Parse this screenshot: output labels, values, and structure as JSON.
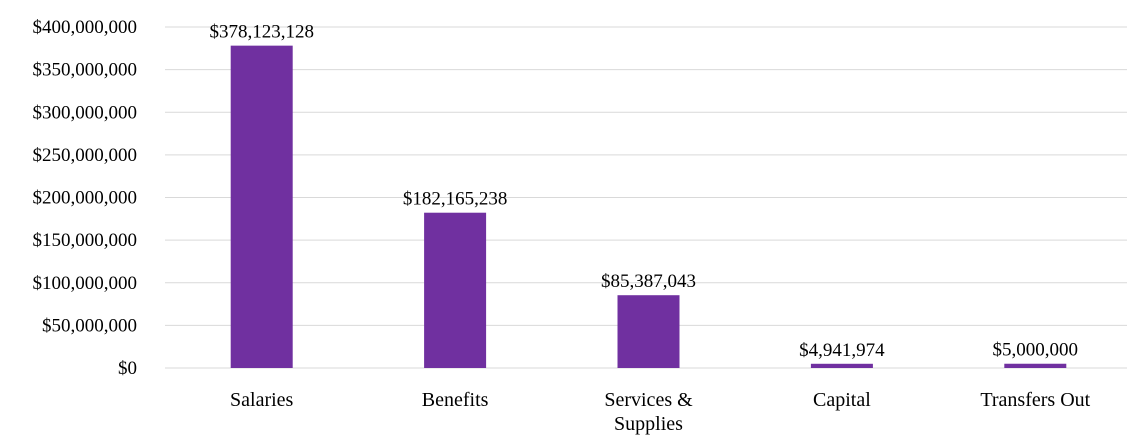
{
  "chart_data": {
    "type": "bar",
    "categories": [
      [
        "Salaries"
      ],
      [
        "Benefits"
      ],
      [
        "Services &",
        "Supplies"
      ],
      [
        "Capital"
      ],
      [
        "Transfers Out"
      ]
    ],
    "values": [
      378123128,
      182165238,
      85387043,
      4941974,
      5000000
    ],
    "data_labels": [
      "$378,123,128",
      "$182,165,238",
      "$85,387,043",
      "$4,941,974",
      "$5,000,000"
    ],
    "y_ticks": [
      0,
      50000000,
      100000000,
      150000000,
      200000000,
      250000000,
      300000000,
      350000000,
      400000000
    ],
    "y_tick_labels": [
      "$0",
      "$50,000,000",
      "$100,000,000",
      "$150,000,000",
      "$200,000,000",
      "$250,000,000",
      "$300,000,000",
      "$350,000,000",
      "$400,000,000"
    ],
    "ylim": [
      0,
      400000000
    ],
    "grid": true,
    "bar_color": "#7030a0",
    "title": "",
    "xlabel": "",
    "ylabel": ""
  }
}
